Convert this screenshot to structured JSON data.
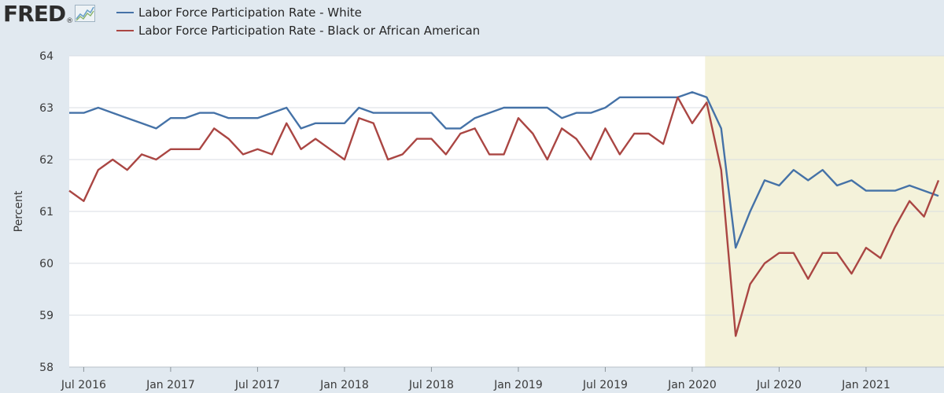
{
  "logo": {
    "text": "FRED",
    "reg": "®"
  },
  "colors": {
    "white": "#4572a7",
    "black": "#aa4643",
    "recession": "#f4f2da",
    "grid": "#d8dde3"
  },
  "chart_data": {
    "type": "line",
    "title": "",
    "xlabel": "",
    "ylabel": "Percent",
    "ylim": [
      58,
      64
    ],
    "yticks": [
      "58",
      "59",
      "60",
      "61",
      "62",
      "63",
      "64"
    ],
    "xticks": [
      {
        "label": "Jul 2016",
        "index": 1
      },
      {
        "label": "Jan 2017",
        "index": 7
      },
      {
        "label": "Jul 2017",
        "index": 13
      },
      {
        "label": "Jan 2018",
        "index": 19
      },
      {
        "label": "Jul 2018",
        "index": 25
      },
      {
        "label": "Jan 2019",
        "index": 31
      },
      {
        "label": "Jul 2019",
        "index": 37
      },
      {
        "label": "Jan 2020",
        "index": 43
      },
      {
        "label": "Jul 2020",
        "index": 49
      },
      {
        "label": "Jan 2021",
        "index": 55
      }
    ],
    "x_start": "Jun 2016",
    "x_end": "Jun 2021",
    "recession": {
      "start_index": 44,
      "end_index": 60
    },
    "series": [
      {
        "name": "Labor Force Participation Rate - White",
        "values": [
          62.9,
          62.9,
          63.0,
          62.9,
          62.8,
          62.7,
          62.6,
          62.8,
          62.8,
          62.9,
          62.9,
          62.8,
          62.8,
          62.8,
          62.9,
          63.0,
          62.6,
          62.7,
          62.7,
          62.7,
          63.0,
          62.9,
          62.9,
          62.9,
          62.9,
          62.9,
          62.6,
          62.6,
          62.8,
          62.9,
          63.0,
          63.0,
          63.0,
          63.0,
          62.8,
          62.9,
          62.9,
          63.0,
          63.2,
          63.2,
          63.2,
          63.2,
          63.2,
          63.3,
          63.2,
          62.6,
          60.3,
          61.0,
          61.6,
          61.5,
          61.8,
          61.6,
          61.8,
          61.5,
          61.6,
          61.4,
          61.4,
          61.4,
          61.5,
          61.4,
          61.3
        ]
      },
      {
        "name": "Labor Force Participation Rate - Black or African American",
        "values": [
          61.4,
          61.2,
          61.8,
          62.0,
          61.8,
          62.1,
          62.0,
          62.2,
          62.2,
          62.2,
          62.6,
          62.4,
          62.1,
          62.2,
          62.1,
          62.7,
          62.2,
          62.4,
          62.2,
          62.0,
          62.8,
          62.7,
          62.0,
          62.1,
          62.4,
          62.4,
          62.1,
          62.5,
          62.6,
          62.1,
          62.1,
          62.8,
          62.5,
          62.0,
          62.6,
          62.4,
          62.0,
          62.6,
          62.1,
          62.5,
          62.5,
          62.3,
          63.2,
          62.7,
          63.1,
          61.8,
          58.6,
          59.6,
          60.0,
          60.2,
          60.2,
          59.7,
          60.2,
          60.2,
          59.8,
          60.3,
          60.1,
          60.7,
          61.2,
          60.9,
          61.6
        ]
      }
    ]
  }
}
